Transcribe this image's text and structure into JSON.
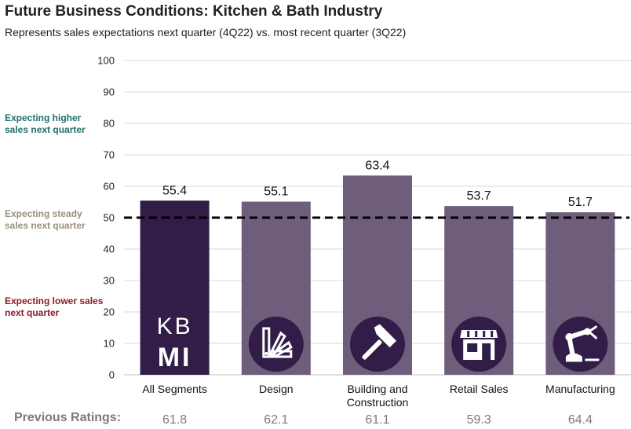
{
  "header": {
    "title": "Future Business Conditions: Kitchen & Bath Industry",
    "subtitle": "Represents sales expectations next quarter (4Q22) vs. most recent quarter (3Q22)"
  },
  "side_labels": {
    "higher": "Expecting higher sales next quarter",
    "steady": "Expecting steady sales next quarter",
    "lower": "Expecting lower sales next quarter"
  },
  "previous": {
    "title": "Previous Ratings:",
    "values": [
      61.8,
      62.1,
      61.1,
      59.3,
      64.4
    ]
  },
  "logo": {
    "text_top": "KB",
    "text_bottom": "MI"
  },
  "icons": [
    "color-swatch-icon",
    "hammer-icon",
    "storefront-icon",
    "robot-arm-icon"
  ],
  "colors": {
    "highlight_bar": "#311d48",
    "bar": "#6e5d7b",
    "reference_line": "#000000"
  },
  "chart_data": {
    "type": "bar",
    "title": "Future Business Conditions: Kitchen & Bath Industry",
    "subtitle": "Represents sales expectations next quarter (4Q22) vs. most recent quarter (3Q22)",
    "categories": [
      "All Segments",
      "Design",
      "Building and Construction",
      "Retail Sales",
      "Manufacturing"
    ],
    "category_lines": [
      [
        "All Segments"
      ],
      [
        "Design"
      ],
      [
        "Building and",
        "Construction"
      ],
      [
        "Retail Sales"
      ],
      [
        "Manufacturing"
      ]
    ],
    "values": [
      55.4,
      55.1,
      63.4,
      53.7,
      51.7
    ],
    "previous_values": [
      61.8,
      62.1,
      61.1,
      59.3,
      64.4
    ],
    "ylim": [
      0,
      100
    ],
    "yticks": [
      0,
      10,
      20,
      30,
      40,
      50,
      60,
      70,
      80,
      90,
      100
    ],
    "reference_line": 50,
    "grid": true,
    "legend": "none"
  }
}
